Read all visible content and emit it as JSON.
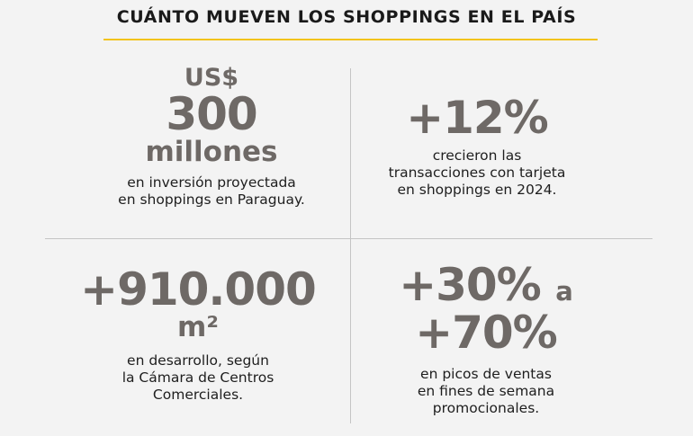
{
  "title": "CUÁNTO MUEVEN LOS SHOPPINGS EN EL PAÍS",
  "colors": {
    "accent_rule": "#f2c31c",
    "big_number": "#6e6966",
    "text": "#1e1e1e",
    "background": "#f3f3f3",
    "divider": "#c4c4c4"
  },
  "stats": {
    "investment": {
      "currency": "US$",
      "value": "300",
      "unit": "millones",
      "desc_line1": "en inversión proyectada",
      "desc_line2": "en shoppings en Paraguay."
    },
    "card_growth": {
      "value": "+12%",
      "desc_line1": "crecieron las",
      "desc_line2": "transacciones con tarjeta",
      "desc_line3": "en shoppings en 2024."
    },
    "area": {
      "value": "+910.000",
      "unit": "m²",
      "desc_line1": "en desarrollo, según",
      "desc_line2": "la Cámara de Centros",
      "desc_line3": "Comerciales."
    },
    "sales_peaks": {
      "value_from": "+30%",
      "connector": "a",
      "value_to": "+70%",
      "desc_line1": "en picos de ventas",
      "desc_line2": "en fines de semana",
      "desc_line3": "promocionales."
    }
  }
}
